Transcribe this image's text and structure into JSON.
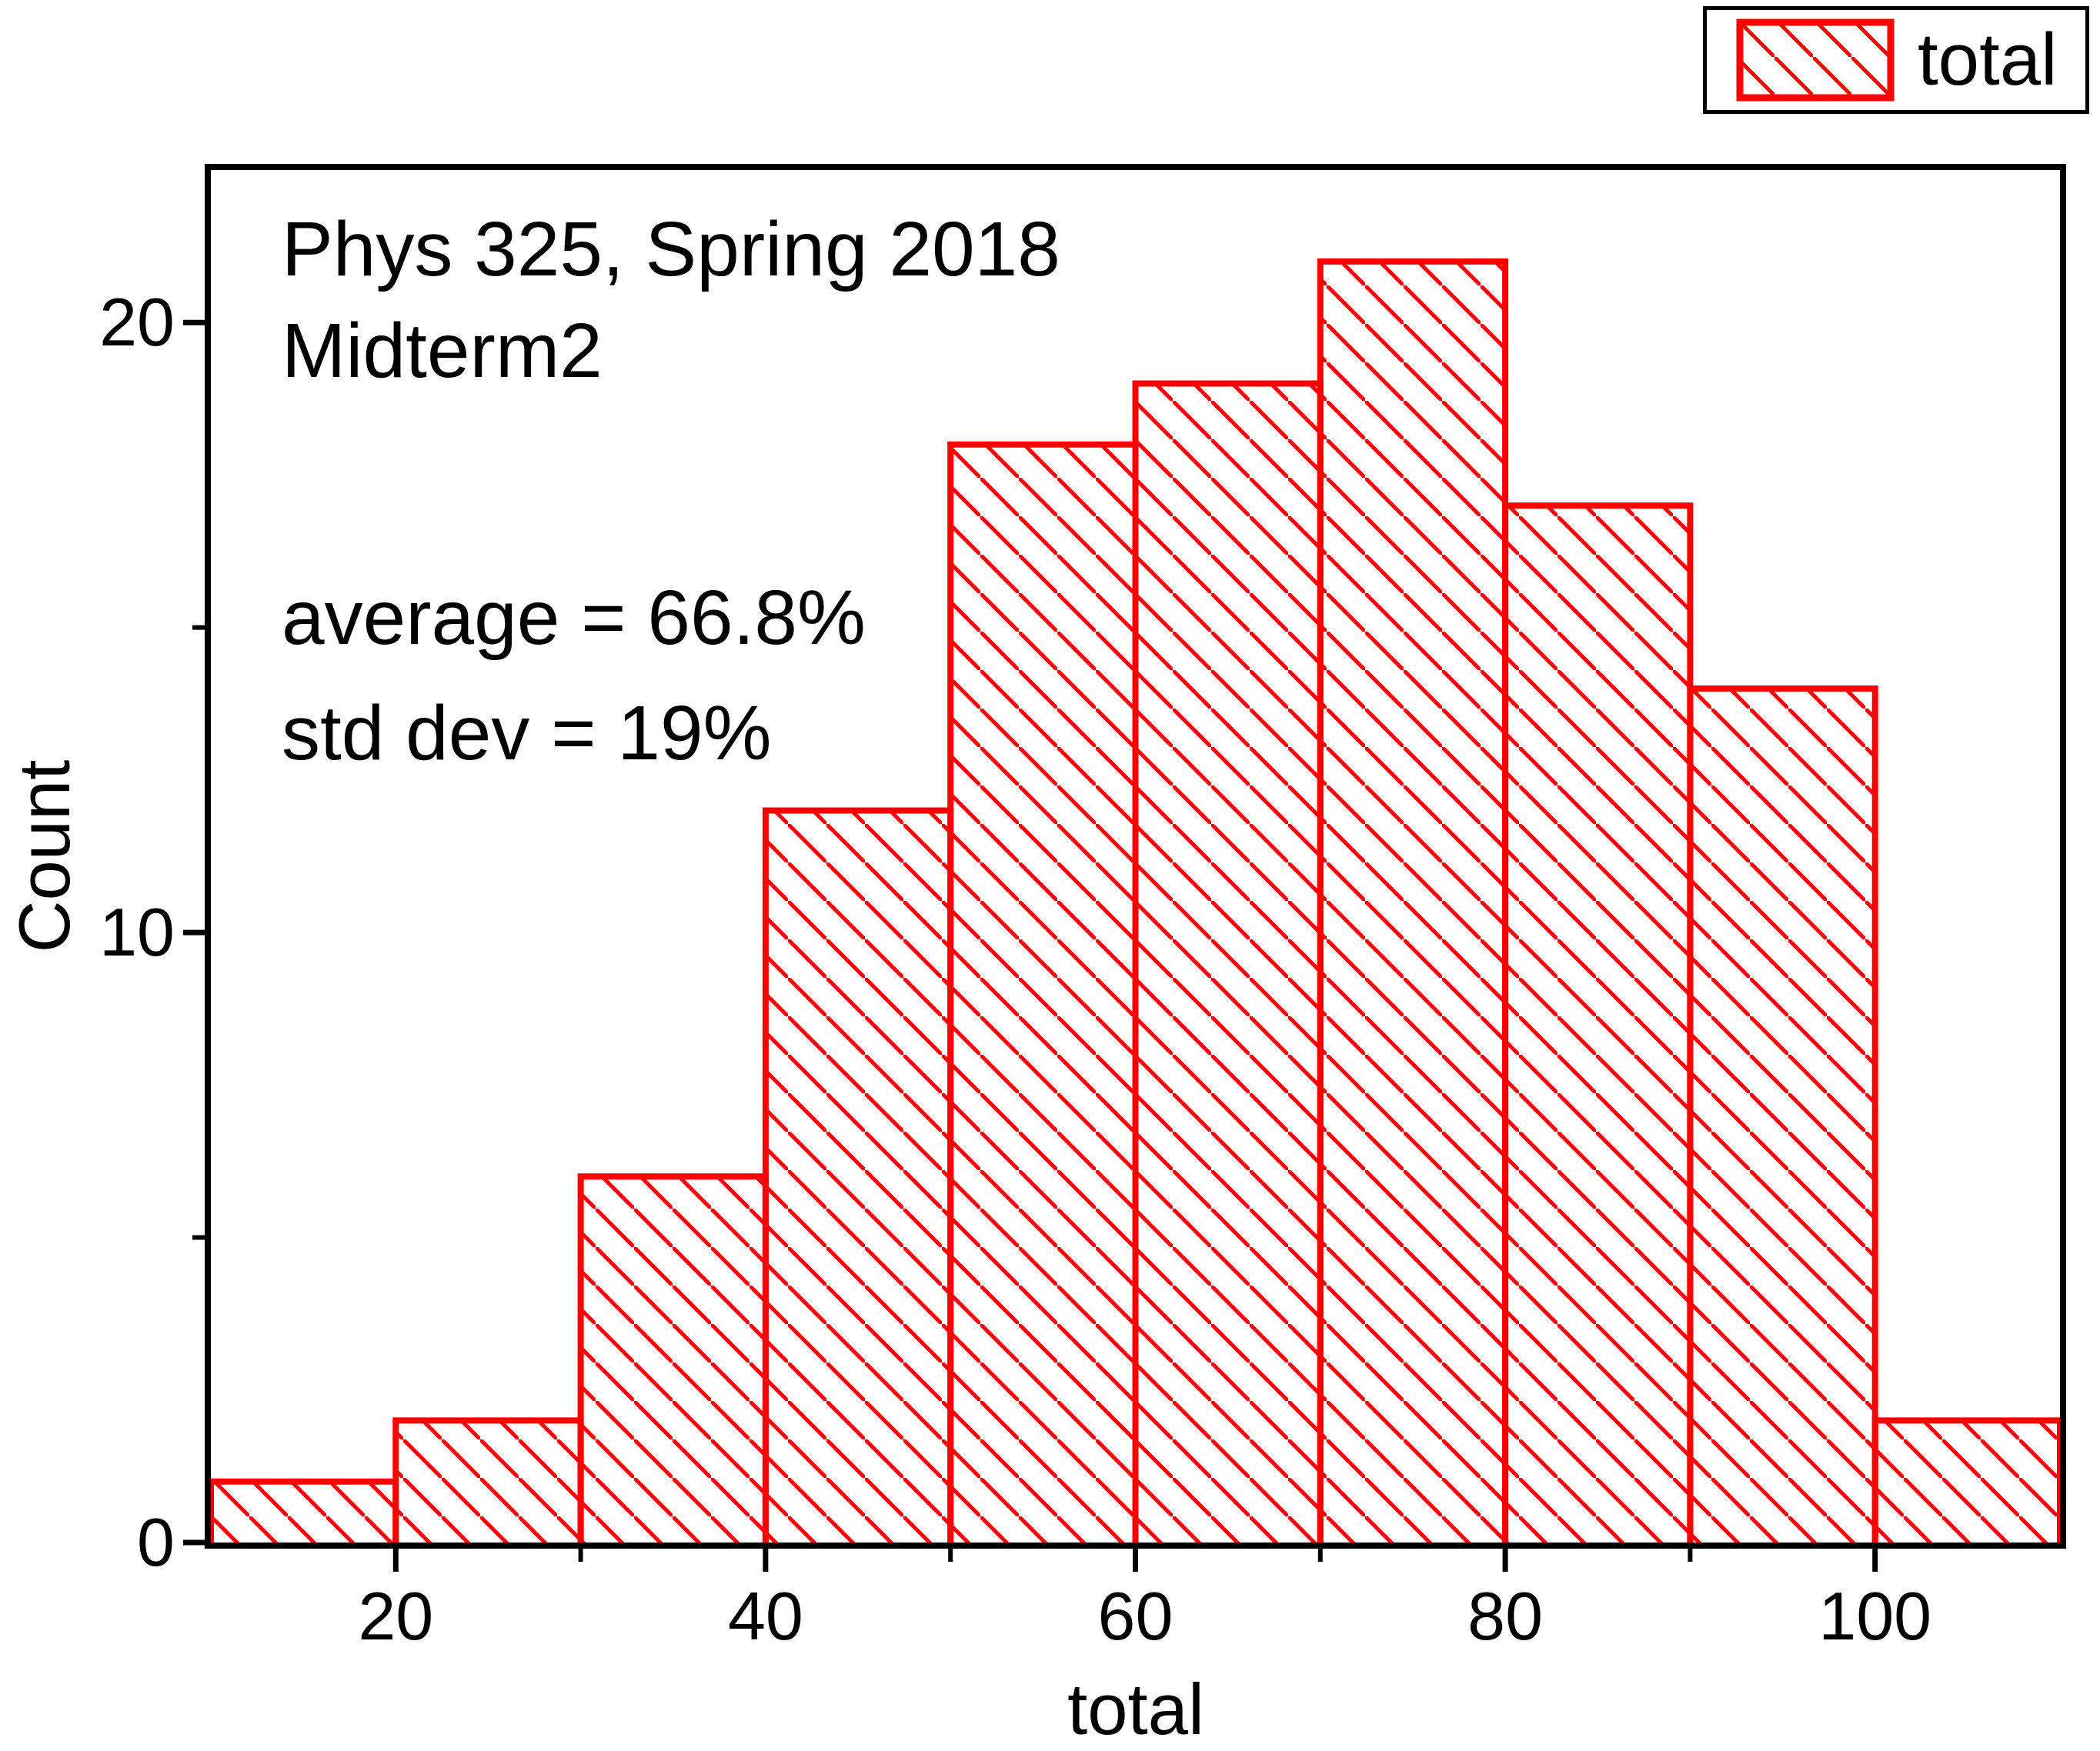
{
  "annotations": {
    "title_line1": "Phys 325, Spring 2018",
    "title_line2": "Midterm2",
    "stats_line1": "average = 66.8%",
    "stats_line2": "std dev = 19%"
  },
  "legend": {
    "label": "total",
    "position": "top-right"
  },
  "axes": {
    "x_label": "total",
    "y_label": "Count",
    "x_range": [
      10,
      110
    ],
    "y_range": [
      0,
      22.5
    ],
    "x_major_ticks": [
      20,
      40,
      60,
      80,
      100
    ],
    "x_major_labels": [
      "20",
      "40",
      "60",
      "80",
      "100"
    ],
    "x_minor_ticks": [
      30,
      50,
      70,
      90
    ],
    "y_major_ticks": [
      0,
      10,
      20
    ],
    "y_major_labels": [
      "0",
      "10",
      "20"
    ],
    "y_minor_ticks": [
      5,
      15
    ],
    "grid": "off"
  },
  "chart_data": {
    "type": "bar",
    "subtype": "histogram",
    "series_name": "total",
    "title": "Phys 325, Spring 2018 Midterm2",
    "xlabel": "total",
    "ylabel": "Count",
    "bin_edges": [
      10,
      20,
      30,
      40,
      50,
      60,
      70,
      80,
      90,
      100,
      110
    ],
    "bin_width": 10,
    "categories": [
      "10-20",
      "20-30",
      "30-40",
      "40-50",
      "50-60",
      "60-70",
      "70-80",
      "80-90",
      "90-100",
      "100-110"
    ],
    "values": [
      1,
      2,
      6,
      12,
      18,
      19,
      21,
      17,
      14,
      2
    ],
    "xlim": [
      10,
      110
    ],
    "ylim": [
      0,
      22.5
    ],
    "bar_color": "#FF0000",
    "bar_fill": "hatched",
    "hatch": "\\",
    "legend_position": "top-right",
    "annotations": [
      "Phys 325, Spring 2018",
      "Midterm2",
      "average = 66.8%",
      "std dev = 19%"
    ]
  },
  "colors": {
    "bar_accent": "#FF0000",
    "axis": "#000000",
    "text": "#000000",
    "background": "#FFFFFF"
  }
}
